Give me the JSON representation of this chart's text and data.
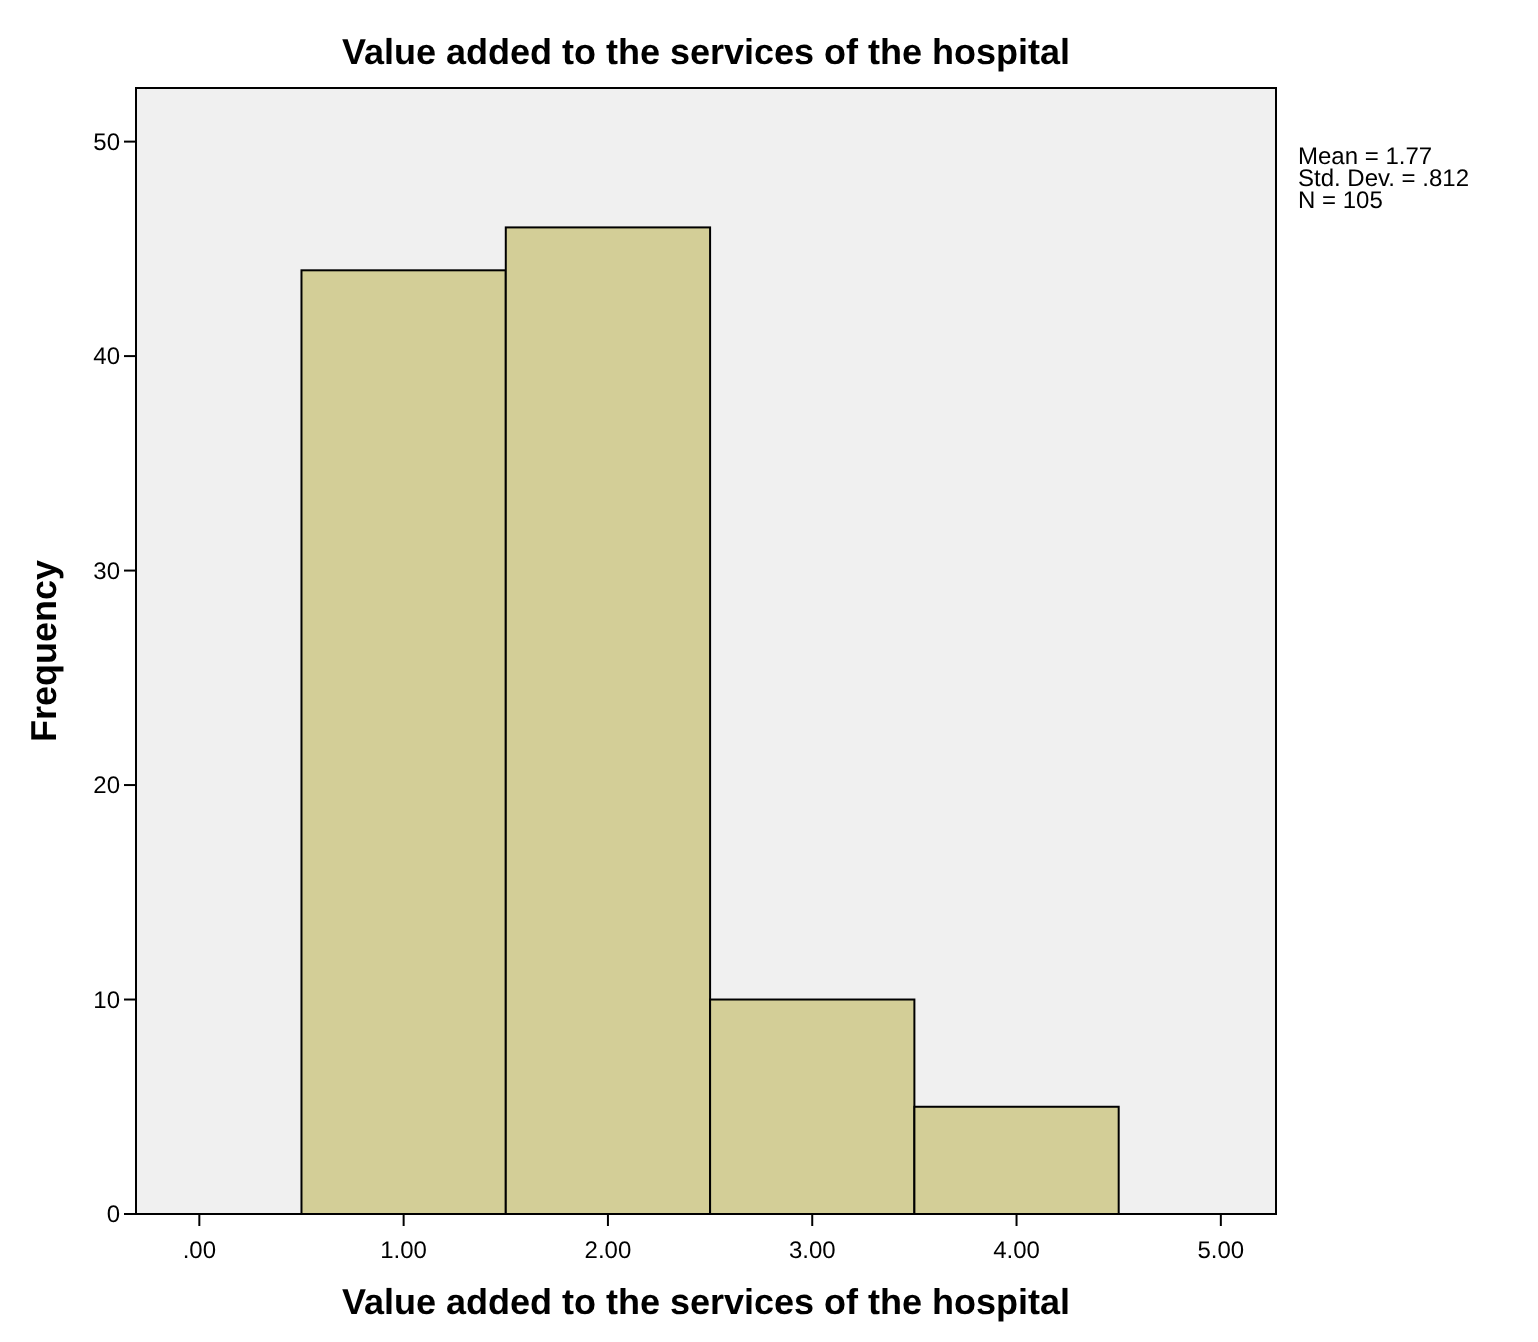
{
  "chart_data": {
    "type": "histogram",
    "title": "Value added to the services of the hospital",
    "xlabel": "Value added to the services of the hospital",
    "ylabel": "Frequency",
    "bins": [
      0.5,
      1.5,
      2.5,
      3.5,
      4.5
    ],
    "values": [
      44,
      46,
      10,
      5
    ],
    "color": "#d3ce97",
    "xlim": [
      -0.31,
      5.27
    ],
    "ylim": [
      0,
      52.5
    ],
    "xticks": [
      {
        "value": 0,
        "label": ".00"
      },
      {
        "value": 1,
        "label": "1.00"
      },
      {
        "value": 2,
        "label": "2.00"
      },
      {
        "value": 3,
        "label": "3.00"
      },
      {
        "value": 4,
        "label": "4.00"
      },
      {
        "value": 5,
        "label": "5.00"
      }
    ],
    "yticks": [
      0,
      10,
      20,
      30,
      40,
      50
    ],
    "annotations": [
      "Mean = 1.77",
      "Std. Dev. = .812",
      "N = 105"
    ],
    "grid": false
  }
}
